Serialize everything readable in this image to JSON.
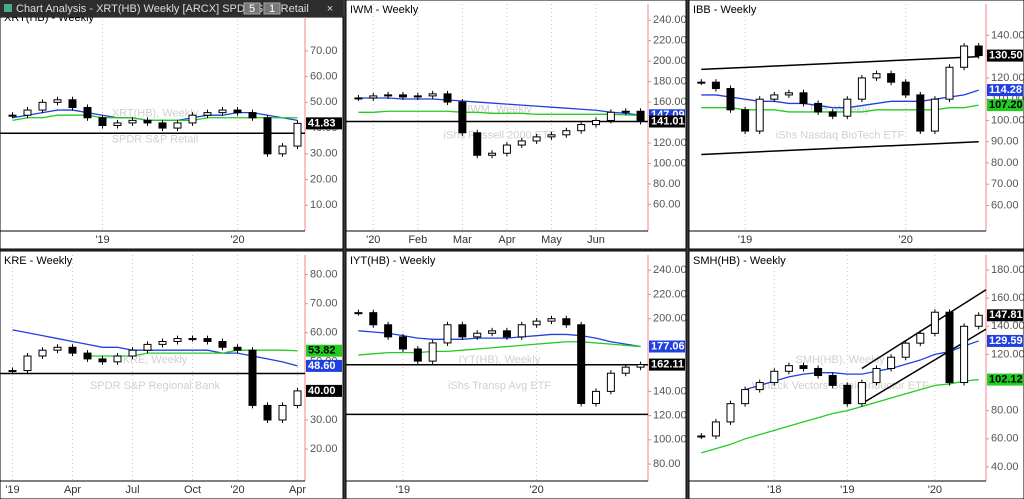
{
  "window": {
    "title": "Chart Analysis - XRT(HB) Weekly [ARCX] SPDR S&P Retail",
    "buttons": [
      "5",
      "1"
    ]
  },
  "chart_data": [
    {
      "type": "candlestick",
      "title": "XRT(HB) - Weekly",
      "watermark": "XRT(HB), Weekly",
      "subtitle": "SPDR S&P Retail",
      "ylim": [
        0,
        82
      ],
      "yticks": [
        {
          "value": 10,
          "label": "10.00"
        },
        {
          "value": 20,
          "label": "20.00"
        },
        {
          "value": 30,
          "label": "30.00"
        },
        {
          "value": 40,
          "label": "40.00"
        },
        {
          "value": 50,
          "label": "50.00"
        },
        {
          "value": 60,
          "label": "60.00"
        },
        {
          "value": 70,
          "label": "70.00"
        }
      ],
      "categories": [
        null,
        null,
        null,
        null,
        null,
        null,
        "'19",
        null,
        null,
        null,
        null,
        null,
        null,
        null,
        null,
        "'20",
        null,
        null,
        null,
        null
      ],
      "values": [
        45,
        47,
        50,
        51,
        48,
        44,
        41,
        42,
        43,
        42,
        40,
        42,
        45,
        46,
        47,
        46,
        44,
        30,
        33,
        41.83
      ],
      "series": [
        {
          "color": "#2040e0",
          "values": [
            44,
            45,
            46,
            47,
            47,
            46,
            45,
            44,
            44,
            43,
            43,
            43,
            44,
            45,
            45,
            46,
            46,
            45,
            44,
            43
          ]
        },
        {
          "color": "#22cc22",
          "values": [
            43,
            44,
            44,
            45,
            45,
            45,
            44,
            44,
            44,
            43,
            43,
            43,
            43,
            44,
            44,
            44,
            44,
            44,
            44,
            44
          ]
        }
      ],
      "hlines": [
        38
      ],
      "trendlines": [],
      "tags": [
        {
          "value": 41.83,
          "label": "41.83",
          "color": "#000000",
          "text_color": "#ffffff"
        }
      ]
    },
    {
      "type": "candlestick",
      "title": "IWM - Weekly",
      "watermark": "IWM, Weekly",
      "subtitle": "iShs Russell 2000 ETF",
      "ylim": [
        34,
        248
      ],
      "yticks": [
        {
          "value": 60,
          "label": "60.00"
        },
        {
          "value": 80,
          "label": "80.00"
        },
        {
          "value": 100,
          "label": "100.00"
        },
        {
          "value": 120,
          "label": "120.00"
        },
        {
          "value": 160,
          "label": "160.00"
        },
        {
          "value": 180,
          "label": "180.00"
        },
        {
          "value": 200,
          "label": "200.00"
        },
        {
          "value": 220,
          "label": "220.00"
        },
        {
          "value": 240,
          "label": "240.00"
        }
      ],
      "categories": [
        null,
        "'20",
        null,
        null,
        "Feb",
        null,
        null,
        "Mar",
        null,
        null,
        "Apr",
        null,
        null,
        "May",
        null,
        null,
        "Jun",
        null,
        null,
        null
      ],
      "values": [
        164,
        166,
        167,
        165,
        166,
        168,
        160,
        130,
        108,
        110,
        118,
        122,
        126,
        128,
        132,
        138,
        142,
        150,
        151,
        141.01
      ],
      "series": [
        {
          "color": "#2040e0",
          "values": [
            164,
            164,
            164,
            163,
            163,
            163,
            162,
            161,
            160,
            159,
            158,
            157,
            156,
            155,
            154,
            153,
            152,
            150,
            149,
            147.09
          ]
        },
        {
          "color": "#22cc22",
          "values": [
            150,
            150,
            151,
            151,
            151,
            151,
            151,
            150,
            150,
            149,
            149,
            149,
            148,
            148,
            148,
            148,
            148,
            148,
            147.5,
            147
          ]
        }
      ],
      "hlines": [
        141
      ],
      "trendlines": [],
      "tags": [
        {
          "value": 147.09,
          "label": "147.09",
          "color": "#2040e0",
          "text_color": "#ffffff"
        },
        {
          "value": 141.01,
          "label": "141.01",
          "color": "#000000",
          "text_color": "#ffffff"
        }
      ]
    },
    {
      "type": "candlestick",
      "title": "IBB - Weekly",
      "watermark": "IBB, Weekly",
      "subtitle": "iShs Nasdaq BioTech ETF",
      "ylim": [
        48,
        151
      ],
      "yticks": [
        {
          "value": 60,
          "label": "60.00"
        },
        {
          "value": 70,
          "label": "70.00"
        },
        {
          "value": 80,
          "label": "80.00"
        },
        {
          "value": 90,
          "label": "90.00"
        },
        {
          "value": 100,
          "label": "100.00"
        },
        {
          "value": 110,
          "label": "110.00"
        },
        {
          "value": 120,
          "label": "120.00"
        },
        {
          "value": 140,
          "label": "140.00"
        }
      ],
      "categories": [
        null,
        null,
        null,
        "'19",
        null,
        null,
        null,
        null,
        null,
        null,
        null,
        null,
        null,
        null,
        "'20",
        null,
        null,
        null,
        null,
        null
      ],
      "values": [
        118,
        115,
        105,
        95,
        110,
        112,
        113,
        108,
        104,
        102,
        110,
        120,
        122,
        118,
        112,
        95,
        110,
        125,
        135,
        130.5
      ],
      "series": [
        {
          "color": "#2040e0",
          "values": [
            112,
            112,
            111,
            110,
            109,
            109,
            108,
            108,
            107,
            106,
            106,
            107,
            108,
            109,
            109,
            109,
            110,
            111,
            112,
            114.28
          ]
        },
        {
          "color": "#22cc22",
          "values": [
            106,
            106,
            106,
            105,
            105,
            105,
            104,
            104,
            104,
            104,
            104,
            104,
            105,
            105,
            105,
            105,
            105,
            106,
            106,
            107.2
          ]
        }
      ],
      "hlines": [],
      "trendlines": [
        [
          0,
          124,
          19,
          130
        ],
        [
          0,
          84,
          19,
          90
        ]
      ],
      "tags": [
        {
          "value": 130.5,
          "label": "130.50",
          "color": "#000000",
          "text_color": "#ffffff"
        },
        {
          "value": 114.28,
          "label": "114.28",
          "color": "#2040e0",
          "text_color": "#ffffff"
        },
        {
          "value": 107.2,
          "label": "107.20",
          "color": "#22cc22",
          "text_color": "#000000"
        }
      ]
    },
    {
      "type": "candlestick",
      "title": "KRE - Weekly",
      "watermark": "KRE, Weekly",
      "subtitle": "SPDR S&P Regional Bank",
      "ylim": [
        9,
        84
      ],
      "yticks": [
        {
          "value": 20,
          "label": "20.00"
        },
        {
          "value": 30,
          "label": "30.00"
        },
        {
          "value": 50,
          "label": "50.00"
        },
        {
          "value": 60,
          "label": "60.00"
        },
        {
          "value": 70,
          "label": "70.00"
        },
        {
          "value": 80,
          "label": "80.00"
        }
      ],
      "categories": [
        "'19",
        null,
        null,
        null,
        "Apr",
        null,
        null,
        null,
        "Jul",
        null,
        null,
        null,
        "Oct",
        null,
        null,
        "'20",
        null,
        null,
        null,
        "Apr"
      ],
      "values": [
        47,
        52,
        54,
        55,
        53,
        51,
        50,
        52,
        54,
        56,
        57,
        58,
        58,
        57,
        55,
        54,
        35,
        30,
        35,
        40
      ],
      "series": [
        {
          "color": "#2040e0",
          "values": [
            61,
            60,
            59,
            58,
            57,
            56,
            55,
            55,
            54,
            54,
            54,
            54,
            54,
            54,
            53,
            53,
            52,
            51,
            50,
            48.6
          ]
        },
        {
          "color": "#22cc22",
          "values": [
            null,
            null,
            null,
            null,
            null,
            52,
            52,
            52,
            52,
            53,
            53,
            53,
            53,
            53,
            53,
            54,
            54,
            54,
            54,
            53.82
          ]
        }
      ],
      "hlines": [
        46
      ],
      "trendlines": [],
      "tags": [
        {
          "value": 53.82,
          "label": "53.82",
          "color": "#22cc22",
          "text_color": "#000000"
        },
        {
          "value": 48.6,
          "label": "48.60",
          "color": "#2040e0",
          "text_color": "#ffffff"
        },
        {
          "value": 40,
          "label": "40.00",
          "color": "#000000",
          "text_color": "#ffffff"
        }
      ]
    },
    {
      "type": "candlestick",
      "title": "IYT(HB) - Weekly",
      "watermark": "IYT(HB), Weekly",
      "subtitle": "iShs Transp Avg ETF",
      "ylim": [
        66,
        246
      ],
      "yticks": [
        {
          "value": 80,
          "label": "80.00"
        },
        {
          "value": 100,
          "label": "100.00"
        },
        {
          "value": 120,
          "label": "120.00"
        },
        {
          "value": 140,
          "label": "140.00"
        },
        {
          "value": 200,
          "label": "200.00"
        },
        {
          "value": 220,
          "label": "220.00"
        },
        {
          "value": 240,
          "label": "240.00"
        }
      ],
      "categories": [
        null,
        null,
        null,
        "'19",
        null,
        null,
        null,
        null,
        null,
        null,
        null,
        null,
        "'20",
        null,
        null,
        null,
        null,
        null,
        null,
        null
      ],
      "values": [
        205,
        195,
        185,
        175,
        165,
        180,
        195,
        185,
        188,
        190,
        185,
        195,
        198,
        200,
        195,
        130,
        140,
        155,
        160,
        162.11
      ],
      "series": [
        {
          "color": "#2040e0",
          "values": [
            190,
            189,
            188,
            186,
            184,
            183,
            183,
            183,
            184,
            184,
            184,
            185,
            186,
            187,
            187,
            186,
            184,
            181,
            179,
            177.06
          ]
        },
        {
          "color": "#22cc22",
          "values": [
            170,
            171,
            172,
            172,
            172,
            173,
            173,
            174,
            175,
            176,
            177,
            178,
            179,
            180,
            181,
            181,
            180,
            179,
            178,
            177
          ]
        }
      ],
      "hlines": [
        162,
        121
      ],
      "trendlines": [],
      "tags": [
        {
          "value": 177.06,
          "label": "177.06",
          "color": "#2040e0",
          "text_color": "#ffffff"
        },
        {
          "value": 162.11,
          "label": "162.11",
          "color": "#000000",
          "text_color": "#ffffff"
        }
      ]
    },
    {
      "type": "candlestick",
      "title": "SMH(HB) - Weekly",
      "watermark": "SMH(HB), Weekly",
      "subtitle": "VanEck Vectors Semiconductor ETF",
      "ylim": [
        30,
        185
      ],
      "yticks": [
        {
          "value": 40,
          "label": "40.00"
        },
        {
          "value": 60,
          "label": "60.00"
        },
        {
          "value": 80,
          "label": "80.00"
        },
        {
          "value": 120,
          "label": "120.00"
        },
        {
          "value": 140,
          "label": "140.00"
        },
        {
          "value": 160,
          "label": "160.00"
        },
        {
          "value": 180,
          "label": "180.00"
        }
      ],
      "categories": [
        null,
        null,
        null,
        null,
        null,
        "'18",
        null,
        null,
        null,
        null,
        "'19",
        null,
        null,
        null,
        null,
        null,
        "'20",
        null,
        null,
        null
      ],
      "values": [
        62,
        72,
        85,
        95,
        100,
        108,
        112,
        110,
        105,
        98,
        85,
        100,
        110,
        118,
        128,
        135,
        150,
        100,
        140,
        147.81
      ],
      "series": [
        {
          "color": "#2040e0",
          "values": [
            null,
            null,
            null,
            95,
            98,
            101,
            104,
            106,
            107,
            107,
            106,
            106,
            108,
            110,
            113,
            116,
            120,
            122,
            126,
            129.59
          ]
        },
        {
          "color": "#22cc22",
          "values": [
            50,
            53,
            56,
            60,
            63,
            66,
            69,
            72,
            75,
            78,
            80,
            83,
            86,
            89,
            92,
            95,
            98,
            99,
            101,
            102.12
          ]
        }
      ],
      "hlines": [],
      "trendlines": [
        [
          11,
          110,
          19.5,
          166
        ],
        [
          11,
          85,
          19.5,
          138
        ]
      ],
      "tags": [
        {
          "value": 147.81,
          "label": "147.81",
          "color": "#000000",
          "text_color": "#ffffff"
        },
        {
          "value": 129.59,
          "label": "129.59",
          "color": "#2040e0",
          "text_color": "#ffffff"
        },
        {
          "value": 102.12,
          "label": "102.12",
          "color": "#22cc22",
          "text_color": "#000000"
        }
      ]
    }
  ]
}
